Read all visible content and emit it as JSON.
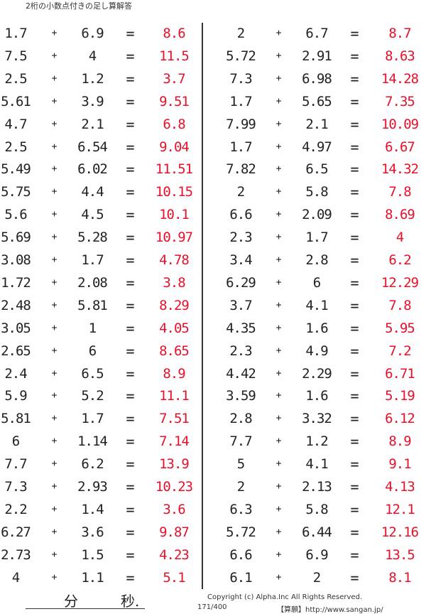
{
  "title": "2桁の小数点付きの足し算解答",
  "operator": "+",
  "equals": "=",
  "answer_color": "#e8102a",
  "left": [
    [
      "1.7",
      "6.9",
      "8.6"
    ],
    [
      "7.5",
      "4",
      "11.5"
    ],
    [
      "2.5",
      "1.2",
      "3.7"
    ],
    [
      "5.61",
      "3.9",
      "9.51"
    ],
    [
      "4.7",
      "2.1",
      "6.8"
    ],
    [
      "2.5",
      "6.54",
      "9.04"
    ],
    [
      "5.49",
      "6.02",
      "11.51"
    ],
    [
      "5.75",
      "4.4",
      "10.15"
    ],
    [
      "5.6",
      "4.5",
      "10.1"
    ],
    [
      "5.69",
      "5.28",
      "10.97"
    ],
    [
      "3.08",
      "1.7",
      "4.78"
    ],
    [
      "1.72",
      "2.08",
      "3.8"
    ],
    [
      "2.48",
      "5.81",
      "8.29"
    ],
    [
      "3.05",
      "1",
      "4.05"
    ],
    [
      "2.65",
      "6",
      "8.65"
    ],
    [
      "2.4",
      "6.5",
      "8.9"
    ],
    [
      "5.9",
      "5.2",
      "11.1"
    ],
    [
      "5.81",
      "1.7",
      "7.51"
    ],
    [
      "6",
      "1.14",
      "7.14"
    ],
    [
      "7.7",
      "6.2",
      "13.9"
    ],
    [
      "7.3",
      "2.93",
      "10.23"
    ],
    [
      "2.2",
      "1.4",
      "3.6"
    ],
    [
      "6.27",
      "3.6",
      "9.87"
    ],
    [
      "2.73",
      "1.5",
      "4.23"
    ],
    [
      "4",
      "1.1",
      "5.1"
    ]
  ],
  "right": [
    [
      "2",
      "6.7",
      "8.7"
    ],
    [
      "5.72",
      "2.91",
      "8.63"
    ],
    [
      "7.3",
      "6.98",
      "14.28"
    ],
    [
      "1.7",
      "5.65",
      "7.35"
    ],
    [
      "7.99",
      "2.1",
      "10.09"
    ],
    [
      "1.7",
      "4.97",
      "6.67"
    ],
    [
      "7.82",
      "6.5",
      "14.32"
    ],
    [
      "2",
      "5.8",
      "7.8"
    ],
    [
      "6.6",
      "2.09",
      "8.69"
    ],
    [
      "2.3",
      "1.7",
      "4"
    ],
    [
      "3.4",
      "2.8",
      "6.2"
    ],
    [
      "6.29",
      "6",
      "12.29"
    ],
    [
      "3.7",
      "4.1",
      "7.8"
    ],
    [
      "4.35",
      "1.6",
      "5.95"
    ],
    [
      "2.3",
      "4.9",
      "7.2"
    ],
    [
      "4.42",
      "2.29",
      "6.71"
    ],
    [
      "3.59",
      "1.6",
      "5.19"
    ],
    [
      "2.8",
      "3.32",
      "6.12"
    ],
    [
      "7.7",
      "1.2",
      "8.9"
    ],
    [
      "5",
      "4.1",
      "9.1"
    ],
    [
      "2",
      "2.13",
      "4.13"
    ],
    [
      "6.3",
      "5.8",
      "12.1"
    ],
    [
      "5.72",
      "6.44",
      "12.16"
    ],
    [
      "6.6",
      "6.9",
      "13.5"
    ],
    [
      "6.1",
      "2",
      "8.1"
    ]
  ],
  "footer": {
    "minutes": "分",
    "seconds": "秒.",
    "copyright": "Copyright (c)  Alpha.Inc All Rights Reserved.",
    "page": "171/400",
    "url": "【算願】http://www.sangan.jp/"
  }
}
